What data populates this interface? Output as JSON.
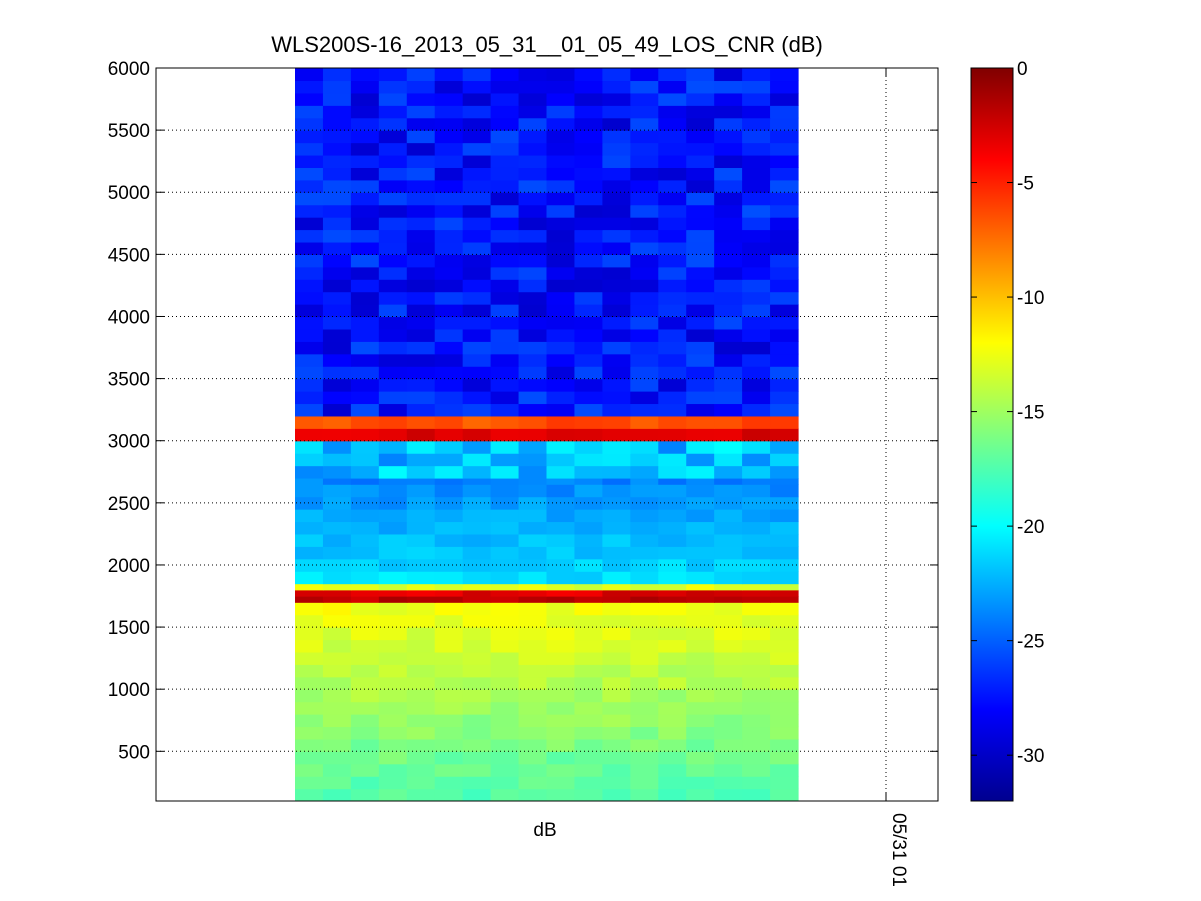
{
  "chart_data": {
    "type": "heatmap",
    "title": "WLS200S-16_2013_05_31__01_05_49_LOS_CNR (dB)",
    "xlabel": "dB",
    "x_tick_labels": [
      "05/31 01"
    ],
    "ylim": [
      100,
      6000
    ],
    "yticks": [
      500,
      1000,
      1500,
      2000,
      2500,
      3000,
      3500,
      4000,
      4500,
      5000,
      5500,
      6000
    ],
    "grid": true,
    "colormap": "jet",
    "colorbar": {
      "range": [
        -32,
        0
      ],
      "ticks": [
        0,
        -5,
        -10,
        -15,
        -20,
        -25,
        -30
      ]
    },
    "columns": 18,
    "y_bin_size": 100,
    "bands": [
      {
        "from": 100,
        "to": 1700,
        "start_value": -17.5,
        "end_value": -12.0
      },
      {
        "from": 1700,
        "to": 1750,
        "value": -2.0
      },
      {
        "from": 1750,
        "to": 1800,
        "value": -3.0
      },
      {
        "from": 1800,
        "to": 1850,
        "value": -13.0
      },
      {
        "from": 1850,
        "to": 2700,
        "start_value": -21.0,
        "end_value": -24.0
      },
      {
        "from": 2700,
        "to": 3000,
        "value": -22.0
      },
      {
        "from": 3000,
        "to": 3100,
        "value": -3.0
      },
      {
        "from": 3100,
        "to": 3200,
        "value": -6.5
      },
      {
        "from": 3200,
        "to": 6000,
        "value": -27.5
      }
    ]
  },
  "colors": {
    "axis": "#000000",
    "grid": "#000000",
    "background": "#ffffff"
  }
}
